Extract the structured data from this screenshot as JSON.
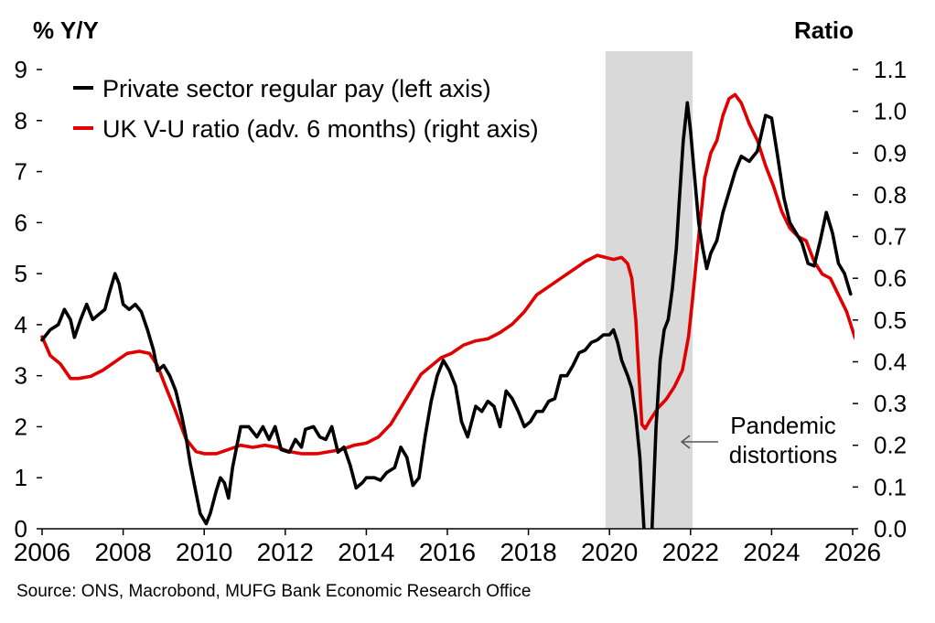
{
  "chart_data": {
    "type": "line",
    "left_axis_title": "% Y/Y",
    "right_axis_title": "Ratio",
    "x_ticks": [
      "2006",
      "2008",
      "2010",
      "2012",
      "2014",
      "2016",
      "2018",
      "2020",
      "2022",
      "2024",
      "2026"
    ],
    "xlim": [
      2006,
      2026
    ],
    "ylim_left": [
      0,
      9
    ],
    "ylim_right": [
      0.0,
      1.1
    ],
    "left_ticks": [
      "0",
      "1",
      "2",
      "3",
      "4",
      "5",
      "6",
      "7",
      "8",
      "9"
    ],
    "right_ticks": [
      "0.0",
      "0.1",
      "0.2",
      "0.3",
      "0.4",
      "0.5",
      "0.6",
      "0.7",
      "0.8",
      "0.9",
      "1.0",
      "1.1"
    ],
    "shaded_region": {
      "x_start": 2019.9,
      "x_end": 2022.05,
      "color": "#d9d9d9"
    },
    "annotation": {
      "lines": [
        "Pandemic",
        "distortions"
      ]
    },
    "legend_position": "top-left",
    "series": [
      {
        "name": "Private sector regular pay (left axis)",
        "axis": "left",
        "color": "#000000",
        "points": [
          [
            2006.0,
            3.7
          ],
          [
            2006.2,
            3.9
          ],
          [
            2006.4,
            4.0
          ],
          [
            2006.55,
            4.3
          ],
          [
            2006.7,
            4.1
          ],
          [
            2006.8,
            3.75
          ],
          [
            2006.95,
            4.1
          ],
          [
            2007.1,
            4.4
          ],
          [
            2007.25,
            4.1
          ],
          [
            2007.4,
            4.2
          ],
          [
            2007.55,
            4.3
          ],
          [
            2007.65,
            4.6
          ],
          [
            2007.8,
            5.0
          ],
          [
            2007.9,
            4.8
          ],
          [
            2008.0,
            4.4
          ],
          [
            2008.15,
            4.3
          ],
          [
            2008.3,
            4.4
          ],
          [
            2008.45,
            4.25
          ],
          [
            2008.6,
            3.9
          ],
          [
            2008.75,
            3.5
          ],
          [
            2008.85,
            3.1
          ],
          [
            2009.0,
            3.2
          ],
          [
            2009.15,
            3.0
          ],
          [
            2009.3,
            2.7
          ],
          [
            2009.45,
            2.2
          ],
          [
            2009.55,
            1.8
          ],
          [
            2009.65,
            1.3
          ],
          [
            2009.8,
            0.7
          ],
          [
            2009.9,
            0.3
          ],
          [
            2010.05,
            0.1
          ],
          [
            2010.15,
            0.3
          ],
          [
            2010.3,
            0.75
          ],
          [
            2010.4,
            1.0
          ],
          [
            2010.5,
            0.9
          ],
          [
            2010.6,
            0.6
          ],
          [
            2010.7,
            1.2
          ],
          [
            2010.8,
            1.6
          ],
          [
            2010.9,
            2.0
          ],
          [
            2011.1,
            2.0
          ],
          [
            2011.3,
            1.8
          ],
          [
            2011.45,
            2.0
          ],
          [
            2011.6,
            1.75
          ],
          [
            2011.75,
            2.0
          ],
          [
            2011.9,
            1.55
          ],
          [
            2012.1,
            1.5
          ],
          [
            2012.25,
            1.75
          ],
          [
            2012.4,
            1.6
          ],
          [
            2012.5,
            1.95
          ],
          [
            2012.7,
            2.0
          ],
          [
            2012.85,
            1.8
          ],
          [
            2013.0,
            1.75
          ],
          [
            2013.15,
            2.0
          ],
          [
            2013.3,
            1.5
          ],
          [
            2013.45,
            1.6
          ],
          [
            2013.6,
            1.25
          ],
          [
            2013.75,
            0.8
          ],
          [
            2013.9,
            0.9
          ],
          [
            2014.0,
            1.0
          ],
          [
            2014.2,
            1.0
          ],
          [
            2014.35,
            0.95
          ],
          [
            2014.5,
            1.1
          ],
          [
            2014.7,
            1.2
          ],
          [
            2014.85,
            1.6
          ],
          [
            2015.0,
            1.4
          ],
          [
            2015.15,
            0.85
          ],
          [
            2015.3,
            1.0
          ],
          [
            2015.45,
            1.8
          ],
          [
            2015.6,
            2.5
          ],
          [
            2015.75,
            3.0
          ],
          [
            2015.9,
            3.3
          ],
          [
            2016.05,
            3.1
          ],
          [
            2016.2,
            2.8
          ],
          [
            2016.35,
            2.1
          ],
          [
            2016.5,
            1.8
          ],
          [
            2016.7,
            2.4
          ],
          [
            2016.85,
            2.3
          ],
          [
            2017.0,
            2.5
          ],
          [
            2017.15,
            2.4
          ],
          [
            2017.3,
            2.0
          ],
          [
            2017.45,
            2.7
          ],
          [
            2017.6,
            2.55
          ],
          [
            2017.75,
            2.3
          ],
          [
            2017.9,
            2.0
          ],
          [
            2018.05,
            2.1
          ],
          [
            2018.2,
            2.3
          ],
          [
            2018.35,
            2.3
          ],
          [
            2018.5,
            2.5
          ],
          [
            2018.65,
            2.55
          ],
          [
            2018.8,
            3.0
          ],
          [
            2018.95,
            3.0
          ],
          [
            2019.1,
            3.2
          ],
          [
            2019.25,
            3.45
          ],
          [
            2019.4,
            3.5
          ],
          [
            2019.55,
            3.65
          ],
          [
            2019.7,
            3.7
          ],
          [
            2019.85,
            3.8
          ],
          [
            2020.0,
            3.8
          ],
          [
            2020.1,
            3.9
          ],
          [
            2020.2,
            3.65
          ],
          [
            2020.3,
            3.3
          ],
          [
            2020.45,
            3.0
          ],
          [
            2020.55,
            2.75
          ],
          [
            2020.65,
            2.2
          ],
          [
            2020.75,
            1.4
          ],
          [
            2020.85,
            0.0
          ],
          [
            2020.95,
            -0.4
          ],
          [
            2021.05,
            0.0
          ],
          [
            2021.15,
            2.0
          ],
          [
            2021.25,
            3.3
          ],
          [
            2021.35,
            3.9
          ],
          [
            2021.45,
            4.1
          ],
          [
            2021.55,
            4.7
          ],
          [
            2021.65,
            5.5
          ],
          [
            2021.72,
            6.4
          ],
          [
            2021.82,
            7.6
          ],
          [
            2021.92,
            8.35
          ],
          [
            2022.0,
            7.8
          ],
          [
            2022.1,
            6.9
          ],
          [
            2022.2,
            6.0
          ],
          [
            2022.3,
            5.5
          ],
          [
            2022.4,
            5.1
          ],
          [
            2022.5,
            5.4
          ],
          [
            2022.65,
            5.65
          ],
          [
            2022.8,
            6.2
          ],
          [
            2022.95,
            6.6
          ],
          [
            2023.1,
            7.0
          ],
          [
            2023.25,
            7.3
          ],
          [
            2023.45,
            7.2
          ],
          [
            2023.65,
            7.4
          ],
          [
            2023.85,
            8.1
          ],
          [
            2024.0,
            8.05
          ],
          [
            2024.15,
            7.3
          ],
          [
            2024.3,
            6.5
          ],
          [
            2024.45,
            6.0
          ],
          [
            2024.6,
            5.8
          ],
          [
            2024.75,
            5.6
          ],
          [
            2024.9,
            5.2
          ],
          [
            2025.05,
            5.15
          ],
          [
            2025.2,
            5.65
          ],
          [
            2025.35,
            6.2
          ],
          [
            2025.5,
            5.8
          ],
          [
            2025.65,
            5.2
          ],
          [
            2025.8,
            5.0
          ],
          [
            2025.95,
            4.6
          ]
        ]
      },
      {
        "name": "UK V-U ratio (adv. 6 months) (right axis)",
        "axis": "right",
        "color": "#e00000",
        "points": [
          [
            2006.0,
            0.46
          ],
          [
            2006.2,
            0.415
          ],
          [
            2006.45,
            0.395
          ],
          [
            2006.7,
            0.36
          ],
          [
            2006.9,
            0.36
          ],
          [
            2007.2,
            0.365
          ],
          [
            2007.5,
            0.38
          ],
          [
            2007.8,
            0.4
          ],
          [
            2008.1,
            0.42
          ],
          [
            2008.4,
            0.425
          ],
          [
            2008.65,
            0.42
          ],
          [
            2008.85,
            0.39
          ],
          [
            2009.05,
            0.34
          ],
          [
            2009.3,
            0.28
          ],
          [
            2009.55,
            0.215
          ],
          [
            2009.8,
            0.185
          ],
          [
            2010.0,
            0.18
          ],
          [
            2010.3,
            0.18
          ],
          [
            2010.6,
            0.19
          ],
          [
            2010.9,
            0.2
          ],
          [
            2011.2,
            0.195
          ],
          [
            2011.5,
            0.2
          ],
          [
            2011.8,
            0.195
          ],
          [
            2012.1,
            0.185
          ],
          [
            2012.4,
            0.18
          ],
          [
            2012.8,
            0.18
          ],
          [
            2013.1,
            0.185
          ],
          [
            2013.4,
            0.19
          ],
          [
            2013.7,
            0.2
          ],
          [
            2014.0,
            0.205
          ],
          [
            2014.3,
            0.22
          ],
          [
            2014.6,
            0.25
          ],
          [
            2014.85,
            0.29
          ],
          [
            2015.1,
            0.33
          ],
          [
            2015.35,
            0.37
          ],
          [
            2015.6,
            0.39
          ],
          [
            2015.85,
            0.41
          ],
          [
            2016.1,
            0.42
          ],
          [
            2016.4,
            0.44
          ],
          [
            2016.7,
            0.45
          ],
          [
            2017.0,
            0.455
          ],
          [
            2017.3,
            0.47
          ],
          [
            2017.6,
            0.49
          ],
          [
            2017.9,
            0.52
          ],
          [
            2018.2,
            0.56
          ],
          [
            2018.5,
            0.58
          ],
          [
            2018.8,
            0.6
          ],
          [
            2019.1,
            0.62
          ],
          [
            2019.4,
            0.64
          ],
          [
            2019.7,
            0.655
          ],
          [
            2019.9,
            0.65
          ],
          [
            2020.1,
            0.645
          ],
          [
            2020.3,
            0.65
          ],
          [
            2020.45,
            0.635
          ],
          [
            2020.55,
            0.6
          ],
          [
            2020.65,
            0.5
          ],
          [
            2020.72,
            0.38
          ],
          [
            2020.8,
            0.25
          ],
          [
            2020.88,
            0.24
          ],
          [
            2021.0,
            0.26
          ],
          [
            2021.2,
            0.29
          ],
          [
            2021.4,
            0.31
          ],
          [
            2021.6,
            0.34
          ],
          [
            2021.8,
            0.38
          ],
          [
            2021.95,
            0.46
          ],
          [
            2022.05,
            0.55
          ],
          [
            2022.2,
            0.7
          ],
          [
            2022.35,
            0.84
          ],
          [
            2022.5,
            0.9
          ],
          [
            2022.65,
            0.93
          ],
          [
            2022.8,
            0.99
          ],
          [
            2022.95,
            1.03
          ],
          [
            2023.1,
            1.04
          ],
          [
            2023.25,
            1.02
          ],
          [
            2023.45,
            0.97
          ],
          [
            2023.65,
            0.93
          ],
          [
            2023.85,
            0.87
          ],
          [
            2024.05,
            0.82
          ],
          [
            2024.25,
            0.76
          ],
          [
            2024.45,
            0.72
          ],
          [
            2024.65,
            0.7
          ],
          [
            2024.85,
            0.69
          ],
          [
            2025.05,
            0.64
          ],
          [
            2025.25,
            0.61
          ],
          [
            2025.45,
            0.6
          ],
          [
            2025.65,
            0.56
          ],
          [
            2025.85,
            0.52
          ],
          [
            2026.05,
            0.46
          ],
          [
            2026.15,
            0.44
          ]
        ]
      }
    ]
  },
  "source": "Source: ONS, Macrobond, MUFG Bank Economic Research Office"
}
